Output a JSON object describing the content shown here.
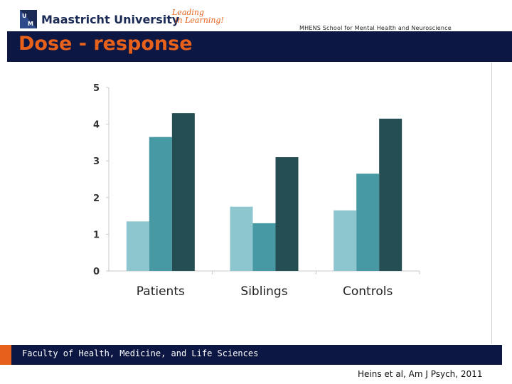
{
  "header": {
    "university": "Maastricht University",
    "slogan_line1": "Leading",
    "slogan_line2": "in Learning!",
    "school": "MHENS School for Mental Health and Neuroscience",
    "title": "Dose - response"
  },
  "footer": {
    "faculty": "Faculty of Health, Medicine, and Life Sciences",
    "citation": "Heins et al, Am J Psych, 2011"
  },
  "colors": {
    "navy": "#0c1744",
    "orange": "#e8611a",
    "series_light": "#8ec6d0",
    "series_mid": "#4799a4",
    "series_dark": "#244e54"
  },
  "chart_data": {
    "type": "bar",
    "title": "",
    "xlabel": "",
    "ylabel": "",
    "categories": [
      "Patients",
      "Siblings",
      "Controls"
    ],
    "series": [
      {
        "name": "",
        "values": [
          1.35,
          1.75,
          1.65
        ]
      },
      {
        "name": "",
        "values": [
          3.65,
          1.3,
          2.65
        ]
      },
      {
        "name": "",
        "values": [
          4.3,
          3.1,
          4.15
        ]
      }
    ],
    "ylim": [
      0,
      5
    ],
    "yticks": [
      "0",
      "1",
      "2",
      "3",
      "4",
      "5"
    ],
    "legend": "none",
    "grid": false
  }
}
